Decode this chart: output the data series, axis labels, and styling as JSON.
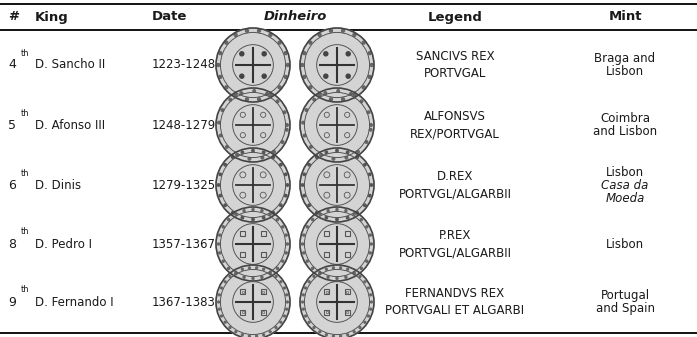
{
  "headers": [
    "#",
    "King",
    "Date",
    "Dinheiro",
    "Legend",
    "Mint"
  ],
  "rows": [
    {
      "num": "4",
      "sup": "th",
      "king": "D. Sancho II",
      "date": "1223-1248",
      "legend": "SANCIVS REX\nPORTVGAL",
      "mint_lines": [
        "Braga and",
        "Lisbon"
      ],
      "mint_italic": [
        false,
        false
      ]
    },
    {
      "num": "5",
      "sup": "th",
      "king": "D. Afonso III",
      "date": "1248-1279",
      "legend": "ALFONSVS\nREX/PORTVGAL",
      "mint_lines": [
        "Coimbra",
        "and Lisbon"
      ],
      "mint_italic": [
        false,
        false
      ]
    },
    {
      "num": "6",
      "sup": "th",
      "king": "D. Dinis",
      "date": "1279-1325",
      "legend": "D.REX\nPORTVGL/ALGARBII",
      "mint_lines": [
        "Lisbon",
        "Casa da",
        "Moeda"
      ],
      "mint_italic": [
        false,
        true,
        true
      ]
    },
    {
      "num": "8",
      "sup": "th",
      "king": "D. Pedro I",
      "date": "1357-1367",
      "legend": "P.REX\nPORTVGL/ALGARBII",
      "mint_lines": [
        "Lisbon"
      ],
      "mint_italic": [
        false
      ]
    },
    {
      "num": "9",
      "sup": "th",
      "king": "D. Fernando I",
      "date": "1367-1383",
      "legend": "FERNANDVS REX\nPORTVGALI ET ALGARBI",
      "mint_lines": [
        "Portugal",
        "and Spain"
      ],
      "mint_italic": [
        false,
        false
      ]
    }
  ],
  "bg_color": "#ffffff",
  "text_color": "#1a1a1a",
  "line_color": "#000000",
  "font_size": 8.5,
  "header_font_size": 9.5,
  "coin_color": "#aaaaaa",
  "coin_edge_color": "#555555",
  "coin_inner_color": "#cccccc"
}
